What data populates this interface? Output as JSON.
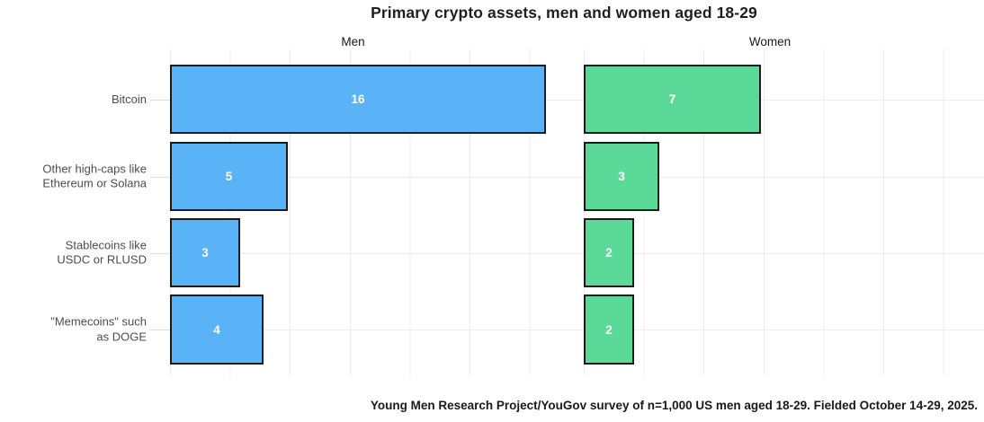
{
  "title": "Primary crypto assets, men and women aged 18-29",
  "caption": "Young Men Research Project/YouGov survey of n=1,000 US men aged 18-29. Fielded October 14-29, 2025.",
  "colors": {
    "men_bar": "#5ab3f7",
    "women_bar": "#5bd999",
    "bar_border": "#1a1a1a",
    "grid": "#ececec",
    "axis_text": "#4d4d4d",
    "value_text": "#ffffff"
  },
  "chart_data": {
    "type": "bar",
    "orientation": "horizontal",
    "title": "Primary crypto assets, men and women aged 18-29",
    "caption": "Young Men Research Project/YouGov survey of n=1,000 US men aged 18-29. Fielded October 14-29, 2025.",
    "categories": [
      "Bitcoin",
      "Other high-caps like\nEthereum or Solana",
      "Stablecoins like\nUSDC or RLUSD",
      "\"Memecoins\" such\nas DOGE"
    ],
    "series": [
      {
        "name": "Men",
        "values": [
          16,
          5,
          3,
          4
        ],
        "color": "#5ab3f7"
      },
      {
        "name": "Women",
        "values": [
          7,
          3,
          2,
          2
        ],
        "color": "#5bd999"
      }
    ],
    "facet_layout": "two side-by-side panels, shared category axis on left",
    "value_labels_shown": true,
    "grid": true,
    "xlim_men": [
      0,
      16.9
    ],
    "xlim_women": [
      0,
      15.8
    ]
  }
}
